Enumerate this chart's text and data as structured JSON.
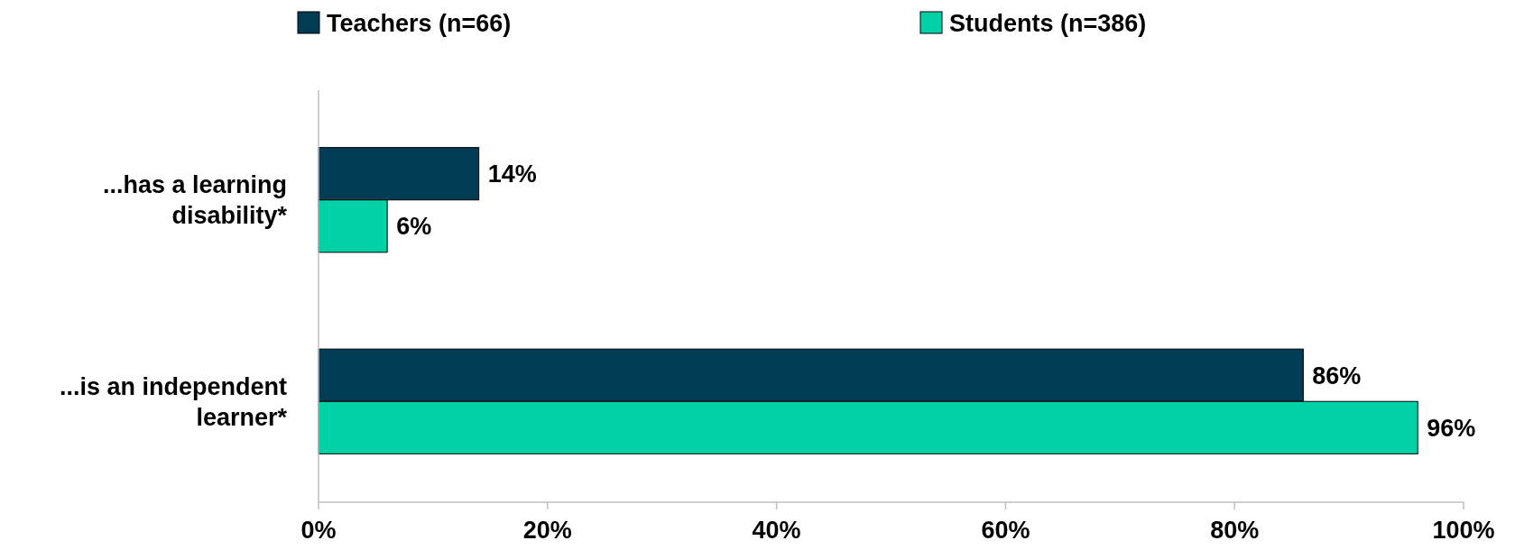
{
  "chart_data": {
    "type": "bar",
    "orientation": "horizontal",
    "categories": [
      "...has a learning disability*",
      "...is an independent learner*"
    ],
    "series": [
      {
        "name": "Teachers (n=66)",
        "color": "#003d54",
        "values": [
          14,
          86
        ]
      },
      {
        "name": "Students (n=386)",
        "color": "#00d1a6",
        "values": [
          6,
          96
        ]
      }
    ],
    "xlim": [
      0,
      100
    ],
    "xticks": [
      {
        "value": 0,
        "label": "0%"
      },
      {
        "value": 20,
        "label": "20%"
      },
      {
        "value": 40,
        "label": "40%"
      },
      {
        "value": 60,
        "label": "60%"
      },
      {
        "value": 80,
        "label": "80%"
      },
      {
        "value": 100,
        "label": "100%"
      }
    ],
    "value_labels": [
      [
        "14%",
        "86%"
      ],
      [
        "6%",
        "96%"
      ]
    ],
    "legend": "top",
    "grid": false
  }
}
